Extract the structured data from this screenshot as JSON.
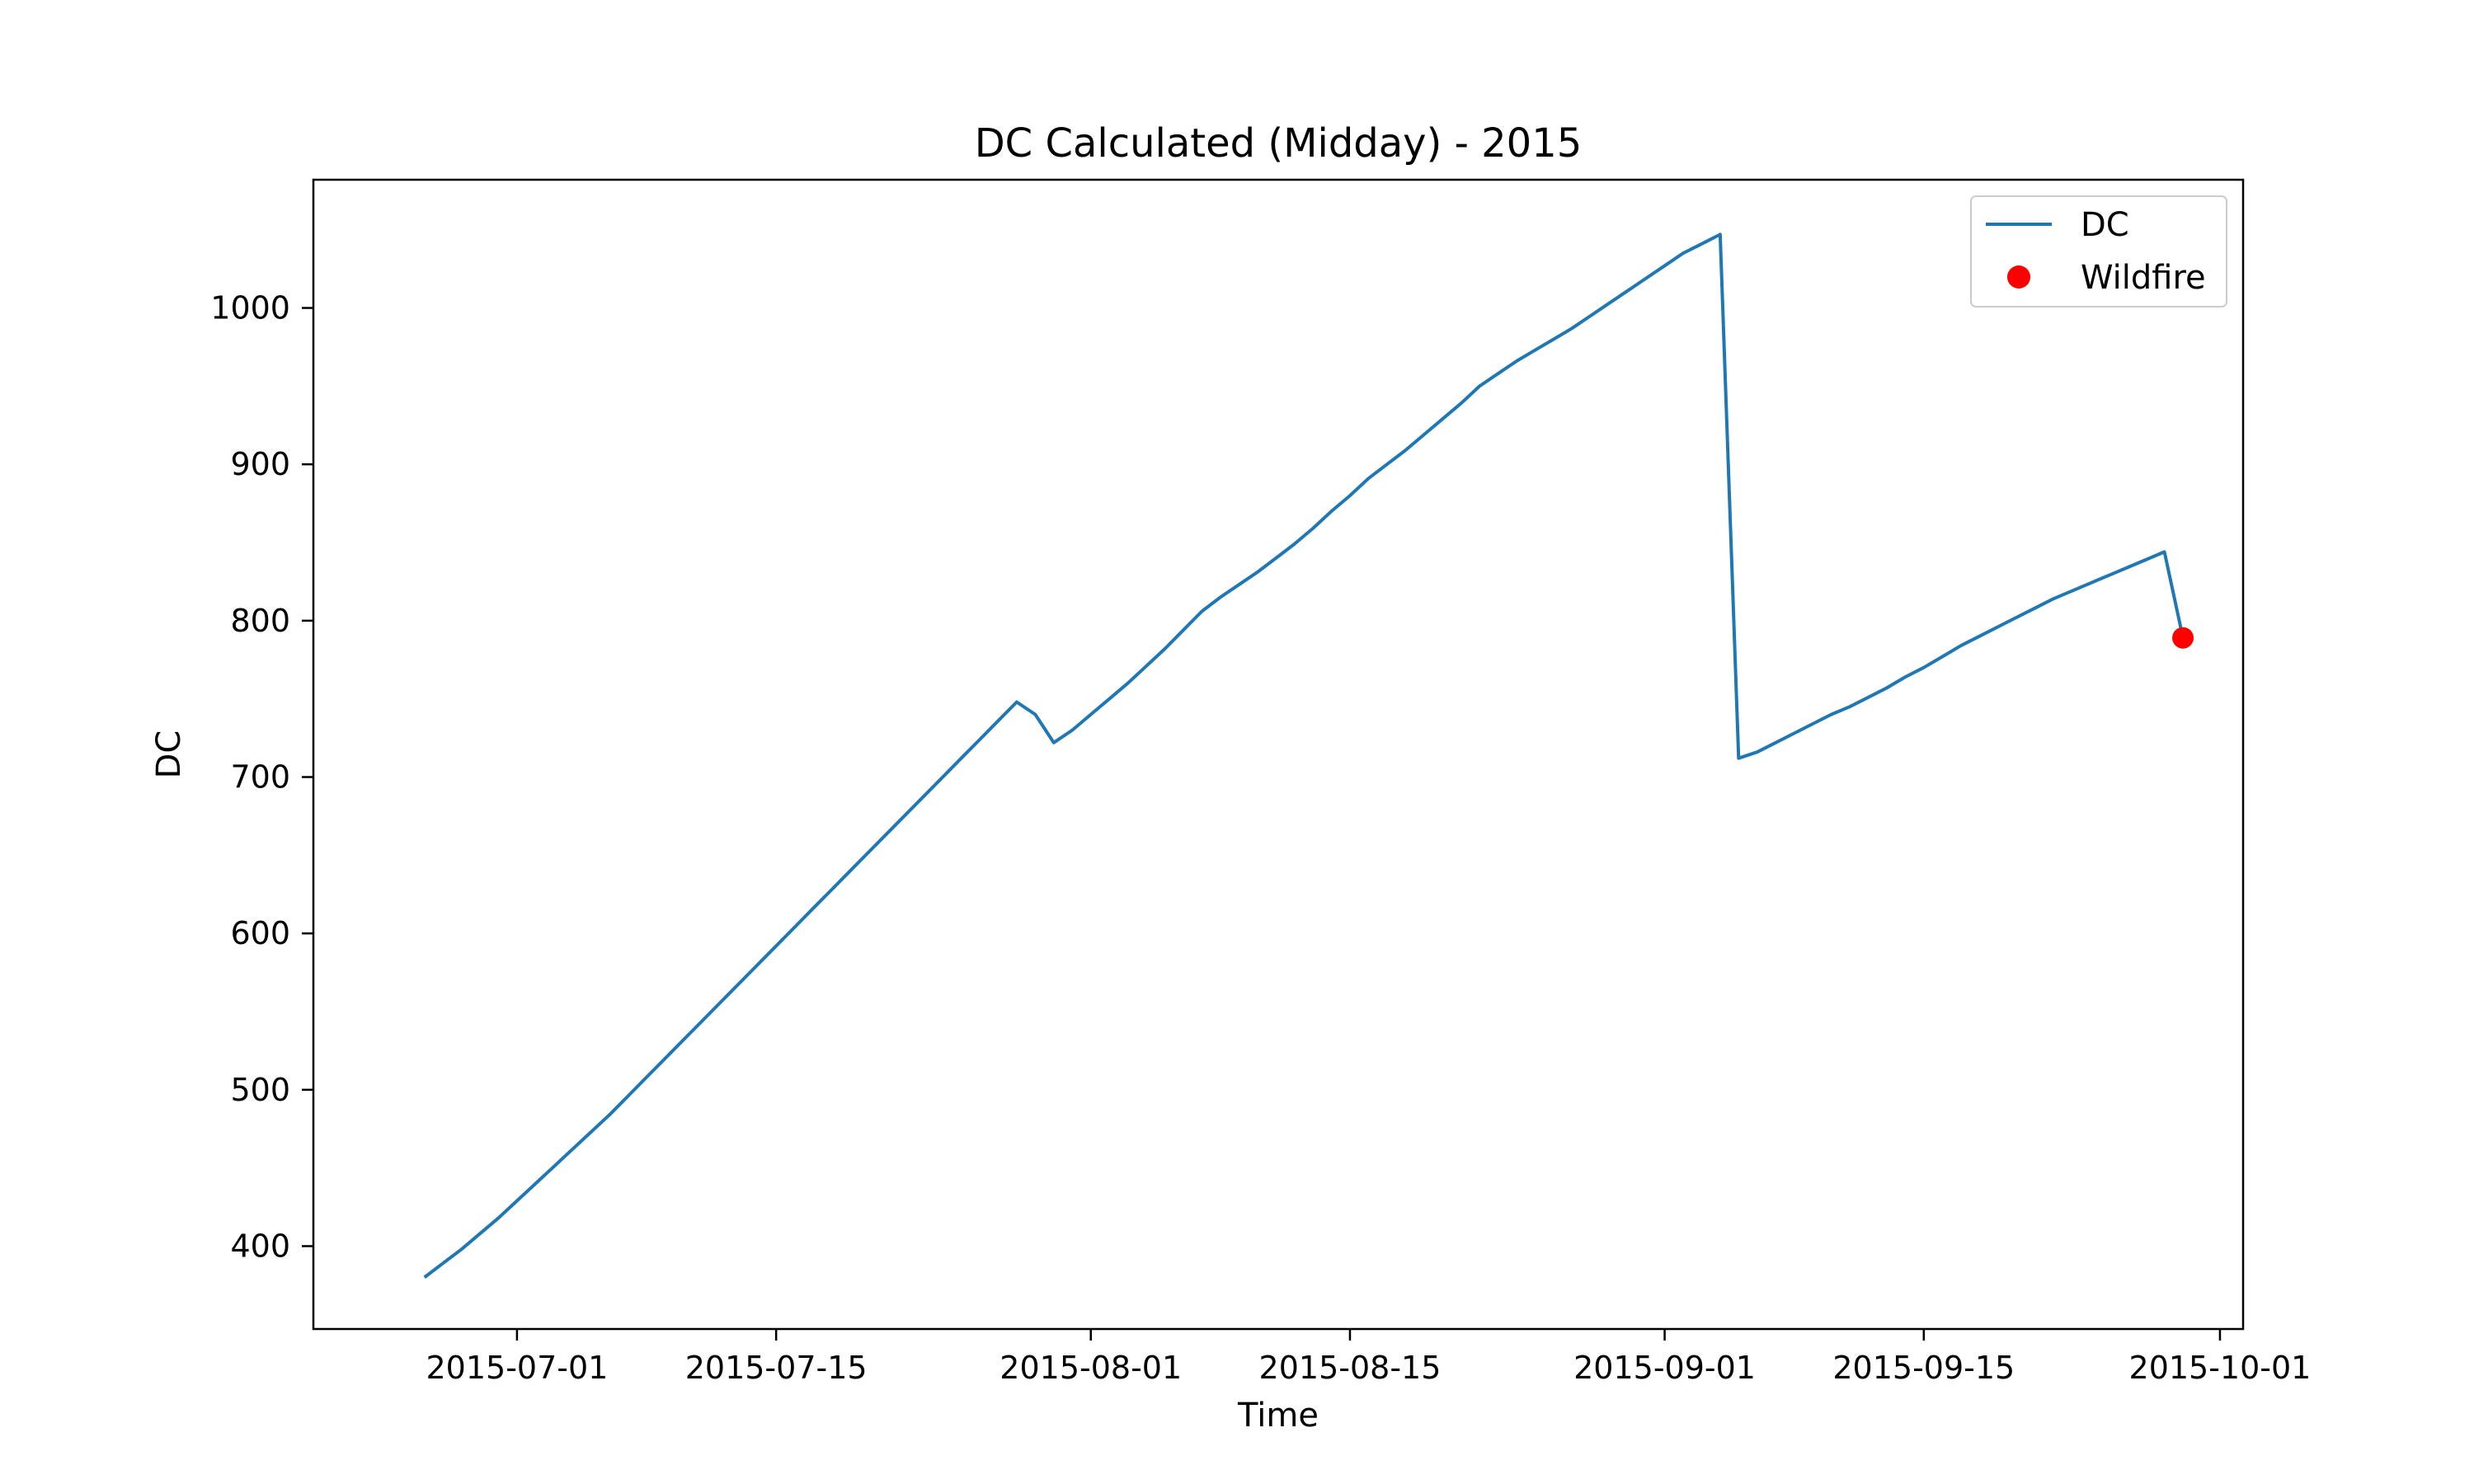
{
  "chart_data": {
    "type": "line",
    "title": "DC Calculated (Midday) - 2015",
    "xlabel": "Time",
    "ylabel": "DC",
    "xlim": [
      "2015-06-20T12:00",
      "2015-10-02T18:00"
    ],
    "ylim": [
      347,
      1082
    ],
    "grid": false,
    "legend": "top-right",
    "x_ticks": [
      "2015-07-01",
      "2015-07-15",
      "2015-08-01",
      "2015-08-15",
      "2015-09-01",
      "2015-09-15",
      "2015-10-01"
    ],
    "y_ticks": [
      400,
      500,
      600,
      700,
      800,
      900,
      1000
    ],
    "series": [
      {
        "name": "DC",
        "color": "#1f77b4",
        "x": [
          "2015-06-26",
          "2015-06-27",
          "2015-06-28",
          "2015-06-29",
          "2015-06-30",
          "2015-07-01",
          "2015-07-02",
          "2015-07-03",
          "2015-07-04",
          "2015-07-05",
          "2015-07-06",
          "2015-07-07",
          "2015-07-08",
          "2015-07-09",
          "2015-07-10",
          "2015-07-11",
          "2015-07-12",
          "2015-07-13",
          "2015-07-14",
          "2015-07-15",
          "2015-07-16",
          "2015-07-17",
          "2015-07-18",
          "2015-07-19",
          "2015-07-20",
          "2015-07-21",
          "2015-07-22",
          "2015-07-23",
          "2015-07-24",
          "2015-07-25",
          "2015-07-26",
          "2015-07-27",
          "2015-07-28",
          "2015-07-29",
          "2015-07-30",
          "2015-07-31",
          "2015-08-01",
          "2015-08-02",
          "2015-08-03",
          "2015-08-04",
          "2015-08-05",
          "2015-08-06",
          "2015-08-07",
          "2015-08-08",
          "2015-08-09",
          "2015-08-10",
          "2015-08-11",
          "2015-08-12",
          "2015-08-13",
          "2015-08-14",
          "2015-08-15",
          "2015-08-16",
          "2015-08-17",
          "2015-08-18",
          "2015-08-19",
          "2015-08-20",
          "2015-08-21",
          "2015-08-22",
          "2015-08-23",
          "2015-08-24",
          "2015-08-25",
          "2015-08-26",
          "2015-08-27",
          "2015-08-28",
          "2015-08-29",
          "2015-08-30",
          "2015-08-31",
          "2015-09-01",
          "2015-09-02",
          "2015-09-03",
          "2015-09-04",
          "2015-09-05",
          "2015-09-06",
          "2015-09-07",
          "2015-09-08",
          "2015-09-09",
          "2015-09-10",
          "2015-09-11",
          "2015-09-12",
          "2015-09-13",
          "2015-09-14",
          "2015-09-15",
          "2015-09-16",
          "2015-09-17",
          "2015-09-18",
          "2015-09-19",
          "2015-09-20",
          "2015-09-21",
          "2015-09-22",
          "2015-09-23",
          "2015-09-24",
          "2015-09-25",
          "2015-09-26",
          "2015-09-27",
          "2015-09-28",
          "2015-09-29"
        ],
        "values": [
          380,
          389,
          398,
          408,
          418,
          429,
          440,
          451,
          462,
          473,
          484,
          496,
          508,
          520,
          532,
          544,
          556,
          568,
          580,
          592,
          604,
          616,
          628,
          640,
          652,
          664,
          676,
          688,
          700,
          712,
          724,
          736,
          748,
          740,
          722,
          730,
          740,
          750,
          760,
          771,
          782,
          794,
          806,
          815,
          823,
          831,
          840,
          849,
          859,
          870,
          880,
          891,
          900,
          909,
          919,
          929,
          939,
          950,
          958,
          966,
          973,
          980,
          987,
          995,
          1003,
          1011,
          1019,
          1027,
          1035,
          1041,
          1047,
          712,
          716,
          722,
          728,
          734,
          740,
          745,
          751,
          757,
          764,
          770,
          777,
          784,
          790,
          796,
          802,
          808,
          814,
          819,
          824,
          829,
          834,
          839,
          844,
          789
        ]
      }
    ],
    "wildfire": {
      "name": "Wildfire",
      "color": "#ff0000",
      "x": "2015-09-29",
      "y": 789
    }
  }
}
